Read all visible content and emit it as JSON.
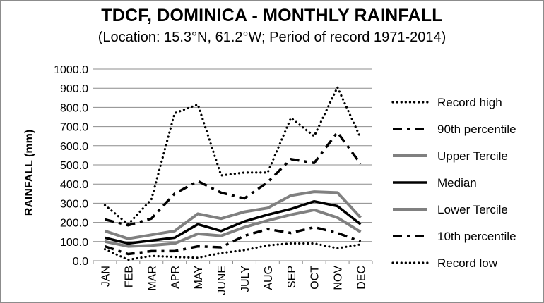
{
  "chart_data": {
    "type": "line",
    "title": "TDCF, DOMINICA - MONTHLY RAINFALL",
    "subtitle": "(Location: 15.3°N, 61.2°W; Period of record 1971-2014)",
    "ylabel": "RAINFALL (mm)",
    "xlabel": "",
    "ylim": [
      0,
      1000
    ],
    "ytick_step": 100,
    "ytick_labels": [
      "0.0",
      "100.0",
      "200.0",
      "300.0",
      "400.0",
      "500.0",
      "600.0",
      "700.0",
      "800.0",
      "900.0",
      "1000.0"
    ],
    "categories": [
      "JAN",
      "FEB",
      "MAR",
      "APR",
      "MAY",
      "JUNE",
      "JULY",
      "AUG",
      "SEP",
      "OCT",
      "NOV",
      "DEC"
    ],
    "grid": true,
    "legend_position": "right",
    "series": [
      {
        "name": "Record high",
        "style": "dotted",
        "color": "#000000",
        "values": [
          290,
          190,
          320,
          770,
          815,
          445,
          460,
          460,
          745,
          650,
          905,
          640
        ]
      },
      {
        "name": "90th percentile",
        "style": "dashdot",
        "color": "#000000",
        "values": [
          215,
          185,
          220,
          350,
          415,
          355,
          325,
          410,
          530,
          510,
          670,
          505
        ]
      },
      {
        "name": "Upper Tercile",
        "style": "solid",
        "color": "#808080",
        "values": [
          155,
          115,
          135,
          155,
          245,
          220,
          255,
          275,
          340,
          360,
          355,
          225
        ]
      },
      {
        "name": "Median",
        "style": "solid",
        "color": "#000000",
        "values": [
          120,
          90,
          105,
          120,
          190,
          155,
          205,
          240,
          270,
          310,
          285,
          190
        ]
      },
      {
        "name": "Lower Tercile",
        "style": "solid",
        "color": "#808080",
        "values": [
          100,
          75,
          80,
          90,
          140,
          130,
          175,
          210,
          240,
          265,
          225,
          150
        ]
      },
      {
        "name": "10th percentile",
        "style": "dashdot",
        "color": "#000000",
        "values": [
          75,
          35,
          50,
          50,
          75,
          70,
          130,
          165,
          145,
          175,
          145,
          100
        ]
      },
      {
        "name": "Record low",
        "style": "dotted",
        "color": "#000000",
        "values": [
          60,
          5,
          25,
          20,
          15,
          40,
          55,
          80,
          90,
          90,
          65,
          85
        ]
      }
    ]
  }
}
